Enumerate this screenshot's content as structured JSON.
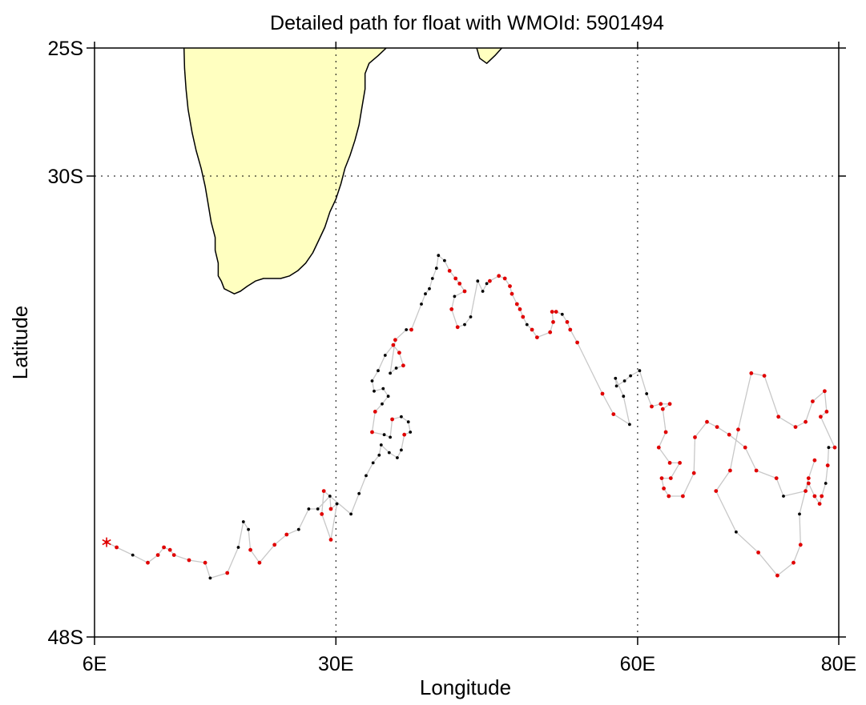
{
  "chart_data": {
    "type": "scatter",
    "title": "Detailed path for float with WMOId: 5901494",
    "xlabel": "Longitude",
    "ylabel": "Latitude",
    "xlim": [
      6,
      80
    ],
    "ylim": [
      -48,
      -25
    ],
    "x_ticks": [
      {
        "value": 6,
        "label": "6E"
      },
      {
        "value": 30,
        "label": "30E"
      },
      {
        "value": 60,
        "label": "60E"
      },
      {
        "value": 80,
        "label": "80E"
      }
    ],
    "y_ticks": [
      {
        "value": -25,
        "label": "25S"
      },
      {
        "value": -30,
        "label": "30S"
      },
      {
        "value": -48,
        "label": "48S"
      }
    ],
    "grid": {
      "x": [
        30,
        60
      ],
      "y": [
        -30
      ]
    },
    "colors": {
      "land": "#ffffc0",
      "track": "#c8c8c8",
      "red_point": "#e00000",
      "black_point": "#000000"
    },
    "start_marker": {
      "lon": 7.2,
      "lat": -44.3,
      "symbol": "asterisk",
      "color": "#e00000"
    },
    "land": [
      {
        "name": "southern-africa",
        "coords": [
          [
            14.9,
            -25.0
          ],
          [
            14.95,
            -25.8
          ],
          [
            15.1,
            -26.6
          ],
          [
            15.3,
            -27.4
          ],
          [
            15.7,
            -28.3
          ],
          [
            16.1,
            -29.0
          ],
          [
            16.6,
            -29.7
          ],
          [
            17.0,
            -30.4
          ],
          [
            17.3,
            -31.1
          ],
          [
            17.6,
            -31.8
          ],
          [
            18.0,
            -32.4
          ],
          [
            18.0,
            -32.9
          ],
          [
            18.3,
            -33.4
          ],
          [
            18.3,
            -33.9
          ],
          [
            18.6,
            -34.1
          ],
          [
            18.9,
            -34.4
          ],
          [
            19.4,
            -34.5
          ],
          [
            19.9,
            -34.6
          ],
          [
            20.5,
            -34.5
          ],
          [
            21.2,
            -34.3
          ],
          [
            22.0,
            -34.1
          ],
          [
            22.8,
            -34.0
          ],
          [
            23.7,
            -34.0
          ],
          [
            24.5,
            -34.0
          ],
          [
            25.4,
            -33.9
          ],
          [
            26.2,
            -33.7
          ],
          [
            27.0,
            -33.4
          ],
          [
            27.7,
            -33.0
          ],
          [
            28.3,
            -32.5
          ],
          [
            28.9,
            -32.0
          ],
          [
            29.4,
            -31.4
          ],
          [
            30.0,
            -30.9
          ],
          [
            30.5,
            -30.3
          ],
          [
            30.9,
            -29.7
          ],
          [
            31.4,
            -29.2
          ],
          [
            31.9,
            -28.6
          ],
          [
            32.3,
            -28.0
          ],
          [
            32.6,
            -27.3
          ],
          [
            32.9,
            -26.6
          ],
          [
            32.9,
            -26.0
          ],
          [
            33.3,
            -25.6
          ],
          [
            34.2,
            -25.3
          ],
          [
            35.0,
            -25.0
          ]
        ]
      },
      {
        "name": "madagascar-tip",
        "coords": [
          [
            44.0,
            -25.0
          ],
          [
            44.3,
            -25.4
          ],
          [
            45.0,
            -25.6
          ],
          [
            45.8,
            -25.3
          ],
          [
            46.5,
            -25.0
          ]
        ]
      }
    ],
    "points": [
      [
        7.2,
        -44.3,
        "r"
      ],
      [
        8.2,
        -44.5,
        "r"
      ],
      [
        9.8,
        -44.8,
        "k"
      ],
      [
        11.3,
        -45.1,
        "r"
      ],
      [
        12.3,
        -44.8,
        "r"
      ],
      [
        12.9,
        -44.5,
        "r"
      ],
      [
        13.5,
        -44.6,
        "r"
      ],
      [
        13.9,
        -44.8,
        "r"
      ],
      [
        15.4,
        -45.0,
        "r"
      ],
      [
        17.0,
        -45.1,
        "r"
      ],
      [
        17.5,
        -45.7,
        "k"
      ],
      [
        19.2,
        -45.5,
        "r"
      ],
      [
        20.3,
        -44.5,
        "k"
      ],
      [
        20.8,
        -43.5,
        "k"
      ],
      [
        21.3,
        -43.8,
        "k"
      ],
      [
        21.5,
        -44.6,
        "r"
      ],
      [
        22.4,
        -45.1,
        "r"
      ],
      [
        23.9,
        -44.4,
        "r"
      ],
      [
        25.1,
        -44.0,
        "r"
      ],
      [
        26.3,
        -43.8,
        "k"
      ],
      [
        27.3,
        -43.0,
        "k"
      ],
      [
        28.2,
        -43.0,
        "k"
      ],
      [
        29.4,
        -42.5,
        "k"
      ],
      [
        29.5,
        -43.0,
        "r"
      ],
      [
        30.1,
        -42.8,
        "k"
      ],
      [
        29.5,
        -44.2,
        "r"
      ],
      [
        28.6,
        -43.2,
        "r"
      ],
      [
        28.8,
        -42.3,
        "r"
      ],
      [
        31.5,
        -43.2,
        "k"
      ],
      [
        32.3,
        -42.4,
        "k"
      ],
      [
        33.0,
        -41.7,
        "k"
      ],
      [
        33.7,
        -41.2,
        "k"
      ],
      [
        34.3,
        -40.9,
        "k"
      ],
      [
        34.5,
        -40.5,
        "k"
      ],
      [
        35.3,
        -40.8,
        "k"
      ],
      [
        36.1,
        -41.0,
        "k"
      ],
      [
        36.5,
        -40.7,
        "k"
      ],
      [
        36.8,
        -40.1,
        "r"
      ],
      [
        37.4,
        -40.0,
        "k"
      ],
      [
        37.2,
        -39.6,
        "k"
      ],
      [
        36.5,
        -39.4,
        "k"
      ],
      [
        35.6,
        -39.5,
        "r"
      ],
      [
        35.4,
        -40.2,
        "k"
      ],
      [
        34.8,
        -40.1,
        "k"
      ],
      [
        33.6,
        -40.0,
        "r"
      ],
      [
        33.9,
        -39.2,
        "r"
      ],
      [
        34.6,
        -38.9,
        "k"
      ],
      [
        35.2,
        -38.6,
        "k"
      ],
      [
        34.7,
        -38.3,
        "k"
      ],
      [
        33.8,
        -38.4,
        "k"
      ],
      [
        33.6,
        -38.0,
        "k"
      ],
      [
        34.2,
        -37.6,
        "k"
      ],
      [
        34.9,
        -37.0,
        "k"
      ],
      [
        35.7,
        -36.6,
        "r"
      ],
      [
        36.3,
        -36.9,
        "r"
      ],
      [
        36.7,
        -37.4,
        "r"
      ],
      [
        36.0,
        -37.5,
        "k"
      ],
      [
        35.4,
        -37.7,
        "k"
      ],
      [
        35.9,
        -36.4,
        "r"
      ],
      [
        37.0,
        -36.0,
        "k"
      ],
      [
        37.5,
        -36.0,
        "r"
      ],
      [
        38.5,
        -35.0,
        "k"
      ],
      [
        38.9,
        -34.6,
        "k"
      ],
      [
        39.3,
        -34.4,
        "k"
      ],
      [
        39.6,
        -34.0,
        "k"
      ],
      [
        40.0,
        -33.6,
        "k"
      ],
      [
        40.2,
        -33.1,
        "k"
      ],
      [
        40.8,
        -33.3,
        "k"
      ],
      [
        41.3,
        -33.7,
        "r"
      ],
      [
        41.9,
        -34.0,
        "r"
      ],
      [
        42.3,
        -34.2,
        "r"
      ],
      [
        42.8,
        -34.5,
        "r"
      ],
      [
        41.8,
        -34.7,
        "k"
      ],
      [
        41.5,
        -35.2,
        "r"
      ],
      [
        42.1,
        -35.9,
        "r"
      ],
      [
        42.8,
        -35.8,
        "k"
      ],
      [
        43.4,
        -35.5,
        "k"
      ],
      [
        44.1,
        -34.1,
        "k"
      ],
      [
        44.6,
        -34.5,
        "k"
      ],
      [
        45.0,
        -34.2,
        "k"
      ],
      [
        45.3,
        -34.1,
        "r"
      ],
      [
        46.2,
        -33.9,
        "r"
      ],
      [
        46.8,
        -34.0,
        "r"
      ],
      [
        47.3,
        -34.3,
        "r"
      ],
      [
        47.5,
        -34.6,
        "r"
      ],
      [
        48.0,
        -35.0,
        "r"
      ],
      [
        48.3,
        -35.2,
        "r"
      ],
      [
        48.6,
        -35.5,
        "r"
      ],
      [
        49.0,
        -35.8,
        "k"
      ],
      [
        49.5,
        -36.0,
        "r"
      ],
      [
        50.0,
        -36.3,
        "r"
      ],
      [
        51.3,
        -36.1,
        "r"
      ],
      [
        51.6,
        -35.7,
        "r"
      ],
      [
        51.5,
        -35.3,
        "r"
      ],
      [
        51.9,
        -35.3,
        "r"
      ],
      [
        52.5,
        -35.4,
        "k"
      ],
      [
        53.0,
        -35.7,
        "r"
      ],
      [
        53.3,
        -36.0,
        "r"
      ],
      [
        54.0,
        -36.5,
        "r"
      ],
      [
        56.5,
        -38.5,
        "r"
      ],
      [
        57.6,
        -39.3,
        "r"
      ],
      [
        59.2,
        -39.7,
        "k"
      ],
      [
        58.6,
        -38.6,
        "k"
      ],
      [
        57.8,
        -37.9,
        "k"
      ],
      [
        57.9,
        -38.2,
        "k"
      ],
      [
        58.7,
        -38.0,
        "k"
      ],
      [
        59.3,
        -37.8,
        "k"
      ],
      [
        60.2,
        -37.6,
        "k"
      ],
      [
        60.9,
        -38.5,
        "k"
      ],
      [
        61.4,
        -39.0,
        "r"
      ],
      [
        62.3,
        -38.9,
        "r"
      ],
      [
        63.2,
        -38.9,
        "r"
      ],
      [
        62.5,
        -39.1,
        "r"
      ],
      [
        62.8,
        -40.0,
        "r"
      ],
      [
        62.1,
        -40.6,
        "r"
      ],
      [
        63.2,
        -41.2,
        "r"
      ],
      [
        64.2,
        -41.2,
        "r"
      ],
      [
        63.3,
        -41.8,
        "r"
      ],
      [
        62.4,
        -41.8,
        "r"
      ],
      [
        62.6,
        -42.2,
        "r"
      ],
      [
        63.1,
        -42.5,
        "r"
      ],
      [
        64.5,
        -42.5,
        "r"
      ],
      [
        65.6,
        -41.6,
        "r"
      ],
      [
        65.7,
        -40.2,
        "r"
      ],
      [
        66.9,
        -39.6,
        "r"
      ],
      [
        67.9,
        -39.8,
        "r"
      ],
      [
        69.1,
        -40.1,
        "r"
      ],
      [
        70.7,
        -40.6,
        "r"
      ],
      [
        71.8,
        -41.5,
        "r"
      ],
      [
        73.8,
        -41.8,
        "r"
      ],
      [
        74.5,
        -42.5,
        "k"
      ],
      [
        76.7,
        -42.3,
        "r"
      ],
      [
        77.0,
        -42.0,
        "r"
      ],
      [
        77.6,
        -42.5,
        "r"
      ],
      [
        78.1,
        -42.8,
        "r"
      ],
      [
        78.3,
        -42.5,
        "r"
      ],
      [
        78.7,
        -42.0,
        "k"
      ],
      [
        78.9,
        -41.3,
        "r"
      ],
      [
        79.0,
        -40.6,
        "k"
      ],
      [
        79.6,
        -40.6,
        "r"
      ],
      [
        78.2,
        -39.4,
        "r"
      ],
      [
        78.8,
        -39.2,
        "r"
      ],
      [
        78.6,
        -38.4,
        "r"
      ],
      [
        77.4,
        -38.8,
        "r"
      ],
      [
        76.7,
        -39.6,
        "r"
      ],
      [
        75.7,
        -39.8,
        "r"
      ],
      [
        74.0,
        -39.4,
        "r"
      ],
      [
        72.6,
        -37.8,
        "r"
      ],
      [
        71.3,
        -37.7,
        "r"
      ],
      [
        70.0,
        -39.9,
        "r"
      ],
      [
        69.2,
        -41.5,
        "r"
      ],
      [
        67.8,
        -42.3,
        "r"
      ],
      [
        69.8,
        -43.9,
        "k"
      ],
      [
        72.0,
        -44.7,
        "r"
      ],
      [
        73.9,
        -45.6,
        "r"
      ],
      [
        75.5,
        -45.1,
        "r"
      ],
      [
        76.2,
        -44.4,
        "r"
      ],
      [
        76.1,
        -43.2,
        "k"
      ],
      [
        77.0,
        -41.8,
        "r"
      ],
      [
        77.6,
        -41.1,
        "r"
      ]
    ]
  }
}
